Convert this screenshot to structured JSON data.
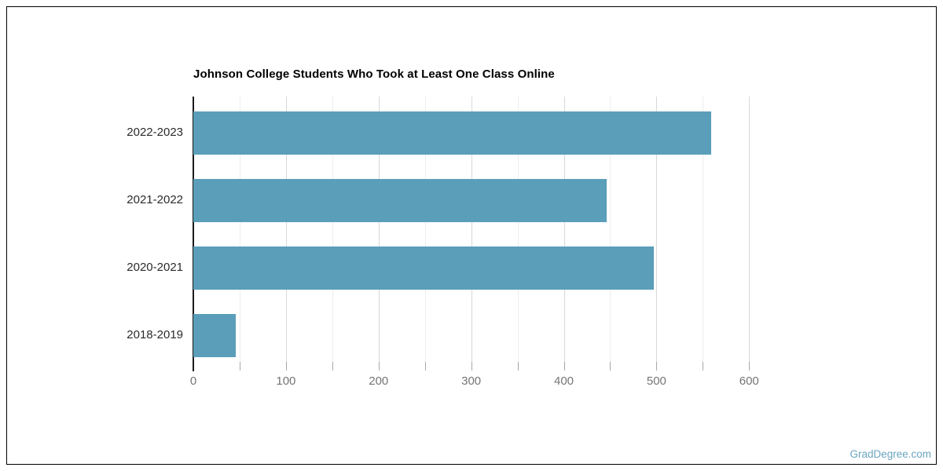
{
  "page": {
    "watermark": "GradDegree.com"
  },
  "chart_data": {
    "type": "bar",
    "orientation": "horizontal",
    "title": "Johnson College Students Who Took at Least One Class Online",
    "categories": [
      "2022-2023",
      "2021-2022",
      "2020-2021",
      "2018-2019"
    ],
    "values": [
      559,
      446,
      497,
      46
    ],
    "xlabel": "",
    "ylabel": "",
    "xlim": [
      0,
      630
    ],
    "x_major_ticks": [
      0,
      100,
      200,
      300,
      400,
      500,
      600
    ],
    "x_minor_ticks": [
      50,
      150,
      250,
      350,
      450,
      550
    ],
    "grid": true,
    "legend": "none",
    "colors": {
      "bar": "#5a9eba",
      "axis_line": "#1b1b1b",
      "grid_major": "#d8d8d8",
      "grid_minor": "#ededed",
      "tick_mark": "#a8a8a8",
      "tick_label": "#757575",
      "category_label": "#2b2b2b",
      "title": "#000000",
      "watermark": "#6ba4c0",
      "border": "#000000"
    }
  }
}
